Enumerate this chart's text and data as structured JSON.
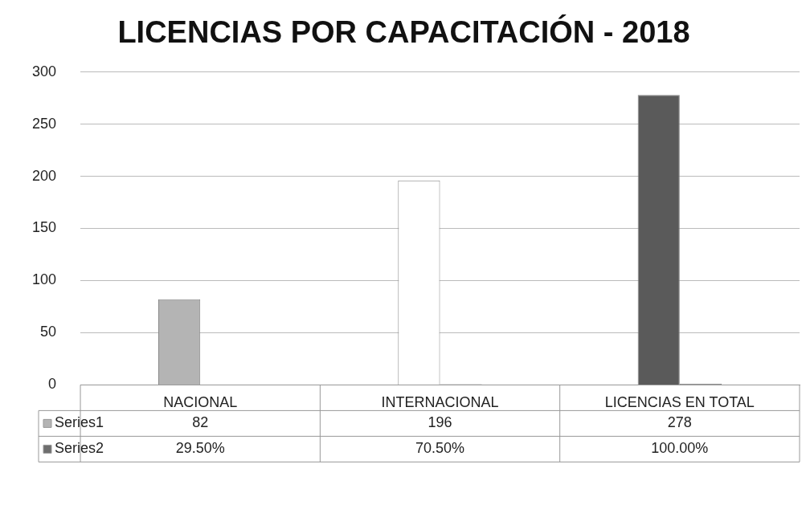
{
  "chart_data": {
    "type": "bar",
    "title": "LICENCIAS POR CAPACITACIÓN - 2018",
    "categories": [
      "NACIONAL",
      "INTERNACIONAL",
      "LICENCIAS EN TOTAL"
    ],
    "series": [
      {
        "name": "Series1",
        "color": "#b4b4b4",
        "colors": [
          "#b4b4b4",
          "#ffffff",
          "#5a5a5a"
        ],
        "values": [
          82,
          196,
          278
        ],
        "value_labels": [
          "82",
          "196",
          "278"
        ]
      },
      {
        "name": "Series2",
        "color": "#6e6e6e",
        "values": [
          0.295,
          0.705,
          1
        ],
        "value_labels": [
          "29.50%",
          "70.50%",
          "100.00%"
        ]
      }
    ],
    "ylim": [
      0,
      300
    ],
    "yticks": [
      0,
      50,
      100,
      150,
      200,
      250,
      300
    ],
    "grid": "y",
    "legend": "bottom left"
  }
}
